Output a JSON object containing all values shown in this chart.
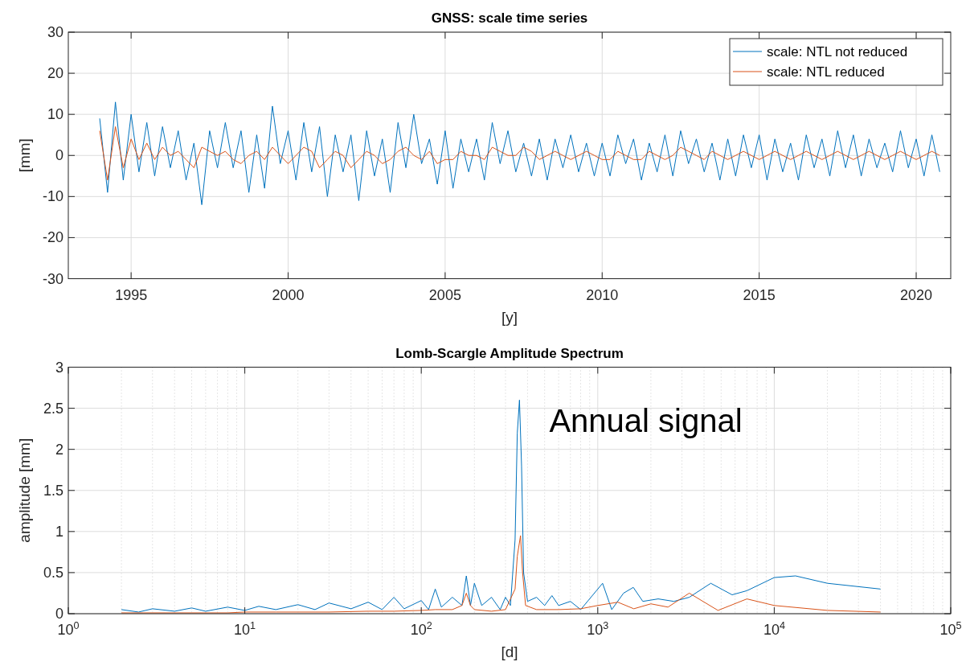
{
  "chart_data": [
    {
      "type": "line",
      "title": "GNSS: scale time series",
      "xlabel": "[y]",
      "ylabel": "[mm]",
      "xlim": [
        1993,
        2021.1
      ],
      "xticks": [
        1995,
        2000,
        2005,
        2010,
        2015,
        2020
      ],
      "ylim": [
        -30,
        30
      ],
      "yticks": [
        -30,
        -20,
        -10,
        0,
        10,
        20,
        30
      ],
      "grid": true,
      "legend": "top right",
      "line_style": "solid",
      "marker": "none",
      "x": [
        1994,
        1994.25,
        1994.5,
        1994.75,
        1995,
        1995.25,
        1995.5,
        1995.75,
        1996,
        1996.25,
        1996.5,
        1996.75,
        1997,
        1997.25,
        1997.5,
        1997.75,
        1998,
        1998.25,
        1998.5,
        1998.75,
        1999,
        1999.25,
        1999.5,
        1999.75,
        2000,
        2000.25,
        2000.5,
        2000.75,
        2001,
        2001.25,
        2001.5,
        2001.75,
        2002,
        2002.25,
        2002.5,
        2002.75,
        2003,
        2003.25,
        2003.5,
        2003.75,
        2004,
        2004.25,
        2004.5,
        2004.75,
        2005,
        2005.25,
        2005.5,
        2005.75,
        2006,
        2006.25,
        2006.5,
        2006.75,
        2007,
        2007.25,
        2007.5,
        2007.75,
        2008,
        2008.25,
        2008.5,
        2008.75,
        2009,
        2009.25,
        2009.5,
        2009.75,
        2010,
        2010.25,
        2010.5,
        2010.75,
        2011,
        2011.25,
        2011.5,
        2011.75,
        2012,
        2012.25,
        2012.5,
        2012.75,
        2013,
        2013.25,
        2013.5,
        2013.75,
        2014,
        2014.25,
        2014.5,
        2014.75,
        2015,
        2015.25,
        2015.5,
        2015.75,
        2016,
        2016.25,
        2016.5,
        2016.75,
        2017,
        2017.25,
        2017.5,
        2017.75,
        2018,
        2018.25,
        2018.5,
        2018.75,
        2019,
        2019.25,
        2019.5,
        2019.75,
        2020,
        2020.25,
        2020.5,
        2020.75
      ],
      "series": [
        {
          "name": "scale: NTL not reduced",
          "color": "#0072bd",
          "values": [
            9,
            -9,
            13,
            -6,
            10,
            -4,
            8,
            -5,
            7,
            -3,
            6,
            -6,
            3,
            -12,
            6,
            -3,
            8,
            -3,
            6,
            -9,
            5,
            -8,
            12,
            -2,
            6,
            -6,
            8,
            -4,
            7,
            -10,
            5,
            -4,
            5,
            -11,
            6,
            -5,
            4,
            -9,
            8,
            -3,
            10,
            -2,
            4,
            -7,
            6,
            -8,
            4,
            -4,
            4,
            -6,
            8,
            -2,
            6,
            -4,
            3,
            -5,
            4,
            -6,
            4,
            -3,
            5,
            -4,
            3,
            -5,
            3,
            -5,
            5,
            -2,
            4,
            -6,
            3,
            -4,
            5,
            -5,
            6,
            -2,
            4,
            -4,
            3,
            -6,
            4,
            -5,
            5,
            -3,
            5,
            -6,
            4,
            -4,
            3,
            -6,
            5,
            -3,
            4,
            -5,
            6,
            -3,
            5,
            -5,
            4,
            -3,
            3,
            -4,
            6,
            -3,
            4,
            -5,
            5,
            -4
          ]
        },
        {
          "name": "scale: NTL reduced",
          "color": "#d95319",
          "values": [
            6,
            -6,
            7,
            -3,
            4,
            -1,
            3,
            -1,
            2,
            0,
            1,
            -1,
            -3,
            2,
            1,
            0,
            1,
            -1,
            -2,
            0,
            1,
            -1,
            2,
            0,
            -2,
            0,
            2,
            1,
            -3,
            -1,
            1,
            0,
            -3,
            -1,
            1,
            0,
            -2,
            -1,
            1,
            2,
            0,
            -1,
            1,
            -2,
            -1,
            -1,
            1,
            0,
            0,
            -1,
            2,
            1,
            0,
            0,
            2,
            1,
            -1,
            0,
            1,
            0,
            -1,
            0,
            1,
            0,
            -1,
            -1,
            1,
            0,
            -1,
            -1,
            1,
            0,
            -1,
            0,
            2,
            1,
            0,
            -1,
            1,
            0,
            -1,
            0,
            1,
            0,
            -1,
            0,
            1,
            0,
            -1,
            0,
            1,
            0,
            -1,
            0,
            1,
            0,
            -1,
            0,
            1,
            0,
            -1,
            0,
            1,
            0,
            -1,
            0,
            1,
            0
          ]
        }
      ]
    },
    {
      "type": "line",
      "title": "Lomb-Scargle Amplitude Spectrum",
      "xlabel": "[d]",
      "ylabel": "amplitude [mm]",
      "log": "x",
      "xlim": [
        1,
        100000
      ],
      "xticks": [
        {
          "value": 1,
          "label": "10$^{0}$"
        },
        {
          "value": 10,
          "label": "10$^{1}$"
        },
        {
          "value": 100,
          "label": "10$^{2}$"
        },
        {
          "value": 1000,
          "label": "10$^{3}$"
        },
        {
          "value": 10000,
          "label": "10$^{4}$"
        },
        {
          "value": 100000,
          "label": "10$^{5}$"
        }
      ],
      "ylim": [
        0,
        3
      ],
      "yticks": [
        0,
        0.5,
        1,
        1.5,
        2,
        2.5,
        3
      ],
      "grid": true,
      "line_style": "solid",
      "marker": "none",
      "annotations": [
        "Annual signal"
      ],
      "series": [
        {
          "color": "#0072bd",
          "x": [
            2,
            2.5,
            3,
            4,
            5,
            6,
            8,
            10,
            12,
            15,
            20,
            25,
            30,
            40,
            50,
            60,
            70,
            80,
            100,
            110,
            120,
            130,
            150,
            170,
            180,
            190,
            200,
            220,
            250,
            280,
            300,
            320,
            340,
            350,
            360,
            370,
            380,
            400,
            450,
            500,
            550,
            600,
            700,
            800,
            1065,
            1200,
            1400,
            1590,
            1800,
            2200,
            2700,
            3300,
            4370,
            5770,
            7000,
            10000,
            13200,
            20000,
            40000
          ],
          "values": [
            0.05,
            0.02,
            0.06,
            0.03,
            0.07,
            0.03,
            0.08,
            0.04,
            0.09,
            0.05,
            0.11,
            0.05,
            0.13,
            0.06,
            0.14,
            0.05,
            0.2,
            0.06,
            0.16,
            0.05,
            0.3,
            0.08,
            0.2,
            0.1,
            0.46,
            0.1,
            0.37,
            0.1,
            0.2,
            0.05,
            0.2,
            0.1,
            0.9,
            2.2,
            2.6,
            1.8,
            0.5,
            0.15,
            0.2,
            0.1,
            0.22,
            0.1,
            0.15,
            0.05,
            0.37,
            0.05,
            0.25,
            0.32,
            0.15,
            0.18,
            0.15,
            0.2,
            0.37,
            0.23,
            0.28,
            0.44,
            0.46,
            0.37,
            0.3
          ]
        },
        {
          "color": "#d95319",
          "x": [
            2,
            3,
            5,
            8,
            10,
            15,
            20,
            30,
            50,
            70,
            100,
            120,
            150,
            170,
            180,
            190,
            200,
            250,
            300,
            340,
            350,
            365,
            375,
            390,
            450,
            600,
            800,
            1000,
            1300,
            1600,
            2000,
            2500,
            3300,
            4800,
            7000,
            10000,
            20000,
            40000
          ],
          "values": [
            0.01,
            0.01,
            0.01,
            0.01,
            0.02,
            0.02,
            0.02,
            0.02,
            0.03,
            0.03,
            0.04,
            0.05,
            0.05,
            0.1,
            0.25,
            0.1,
            0.05,
            0.03,
            0.05,
            0.3,
            0.7,
            0.95,
            0.5,
            0.1,
            0.05,
            0.05,
            0.06,
            0.1,
            0.14,
            0.06,
            0.12,
            0.08,
            0.25,
            0.04,
            0.18,
            0.1,
            0.04,
            0.02
          ]
        }
      ]
    }
  ]
}
